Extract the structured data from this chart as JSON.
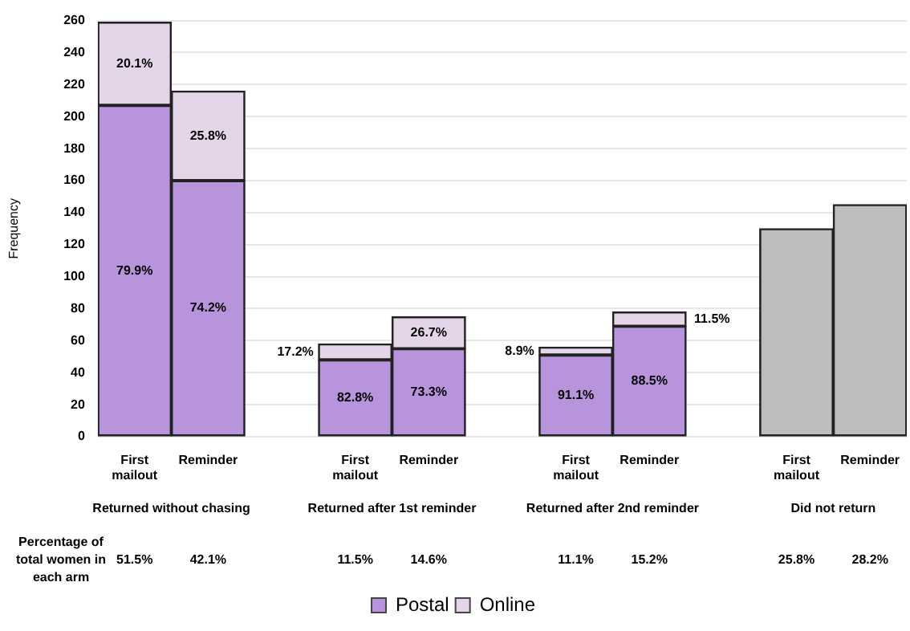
{
  "chart_data": {
    "type": "bar",
    "stacked": true,
    "ylabel": "Frequency",
    "categories": [
      "First mailout",
      "Reminder",
      null,
      "First mailout",
      "Reminder",
      null,
      "First mailout",
      "Reminder",
      null,
      "First mailout",
      "Reminder"
    ],
    "series": [
      {
        "name": "Postal",
        "color": "#b894dc",
        "colors": [
          "#b894dc",
          "#b894dc",
          null,
          "#b894dc",
          "#b894dc",
          null,
          "#b894dc",
          "#b894dc",
          null,
          "#bdbdbd",
          "#bdbdbd"
        ],
        "values": [
          207,
          160,
          null,
          48,
          55,
          null,
          51,
          69,
          null,
          130,
          145
        ]
      },
      {
        "name": "Online",
        "color": "#e4d6e8",
        "values": [
          52,
          56,
          null,
          10,
          20,
          null,
          5,
          9,
          null,
          null,
          null
        ]
      }
    ],
    "ylim": [
      0,
      260
    ],
    "yticks": [
      0,
      20,
      40,
      60,
      80,
      100,
      120,
      140,
      160,
      180,
      200,
      220,
      240,
      260
    ],
    "grid": "y",
    "legend": "bottom",
    "annotations": [
      "Returned without chasing",
      "Returned after 1st reminder",
      "Returned after 2nd reminder",
      "Did not return",
      "Percentage of total women in each arm",
      "51.5%",
      "42.1%",
      "11.5%",
      "14.6%",
      "11.1%",
      "15.2%",
      "25.8%",
      "28.2%",
      "79.9%",
      "74.2%",
      "82.8%",
      "73.3%",
      "91.1%",
      "88.5%",
      "20.1%",
      "25.8%",
      "17.2%",
      "26.7%",
      "8.9%",
      "11.5%"
    ]
  }
}
